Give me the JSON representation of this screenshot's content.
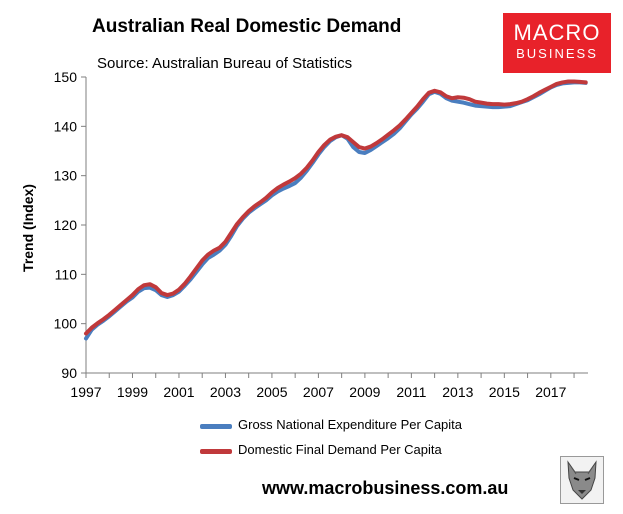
{
  "header": {
    "title": "Australian Real Domestic Demand",
    "subtitle": "Source: Australian Bureau of Statistics"
  },
  "logo": {
    "line1": "MACRO",
    "line2": "BUSINESS",
    "color": "#e8222a",
    "icon": "wolf-icon"
  },
  "footer": {
    "website": "www.macrobusiness.com.au"
  },
  "chart_data": {
    "type": "line",
    "title": "Australian Real Domestic Demand",
    "ylabel": "Trend (Index)",
    "xlabel": "",
    "xlim": [
      1997,
      2018.6
    ],
    "ylim": [
      90,
      150
    ],
    "xticks": [
      "1997",
      "1999",
      "2001",
      "2003",
      "2005",
      "2007",
      "2009",
      "2011",
      "2013",
      "2015",
      "2017"
    ],
    "yticks": [
      "90",
      "100",
      "110",
      "120",
      "130",
      "140",
      "150"
    ],
    "grid": false,
    "legend": "bottom",
    "series": [
      {
        "name": "Gross National Expenditure Per Capita",
        "color": "#4a7ebf",
        "points": [
          [
            1997.0,
            97.0
          ],
          [
            1997.25,
            98.8
          ],
          [
            1997.5,
            99.8
          ],
          [
            1997.75,
            100.6
          ],
          [
            1998.0,
            101.5
          ],
          [
            1998.25,
            102.5
          ],
          [
            1998.5,
            103.5
          ],
          [
            1998.75,
            104.5
          ],
          [
            1999.0,
            105.3
          ],
          [
            1999.25,
            106.5
          ],
          [
            1999.5,
            107.2
          ],
          [
            1999.75,
            107.3
          ],
          [
            2000.0,
            106.8
          ],
          [
            2000.25,
            105.8
          ],
          [
            2000.5,
            105.4
          ],
          [
            2000.75,
            105.8
          ],
          [
            2001.0,
            106.5
          ],
          [
            2001.25,
            107.7
          ],
          [
            2001.5,
            109.0
          ],
          [
            2001.75,
            110.5
          ],
          [
            2002.0,
            112.0
          ],
          [
            2002.25,
            113.3
          ],
          [
            2002.5,
            114.0
          ],
          [
            2002.75,
            114.8
          ],
          [
            2003.0,
            116.0
          ],
          [
            2003.25,
            117.8
          ],
          [
            2003.5,
            119.8
          ],
          [
            2003.75,
            121.3
          ],
          [
            2004.0,
            122.5
          ],
          [
            2004.25,
            123.4
          ],
          [
            2004.5,
            124.2
          ],
          [
            2004.75,
            125.0
          ],
          [
            2005.0,
            126.0
          ],
          [
            2005.25,
            126.8
          ],
          [
            2005.5,
            127.4
          ],
          [
            2005.75,
            127.9
          ],
          [
            2006.0,
            128.5
          ],
          [
            2006.25,
            129.6
          ],
          [
            2006.5,
            131.0
          ],
          [
            2006.75,
            132.6
          ],
          [
            2007.0,
            134.3
          ],
          [
            2007.25,
            135.8
          ],
          [
            2007.5,
            137.0
          ],
          [
            2007.75,
            137.8
          ],
          [
            2008.0,
            138.2
          ],
          [
            2008.25,
            137.5
          ],
          [
            2008.5,
            135.8
          ],
          [
            2008.75,
            134.8
          ],
          [
            2009.0,
            134.6
          ],
          [
            2009.25,
            135.2
          ],
          [
            2009.5,
            136.0
          ],
          [
            2009.75,
            136.8
          ],
          [
            2010.0,
            137.6
          ],
          [
            2010.25,
            138.5
          ],
          [
            2010.5,
            139.6
          ],
          [
            2010.75,
            141.0
          ],
          [
            2011.0,
            142.4
          ],
          [
            2011.25,
            143.6
          ],
          [
            2011.5,
            145.0
          ],
          [
            2011.75,
            146.5
          ],
          [
            2012.0,
            147.0
          ],
          [
            2012.25,
            146.6
          ],
          [
            2012.5,
            145.7
          ],
          [
            2012.75,
            145.2
          ],
          [
            2013.0,
            145.0
          ],
          [
            2013.25,
            144.8
          ],
          [
            2013.5,
            144.5
          ],
          [
            2013.75,
            144.2
          ],
          [
            2014.0,
            144.1
          ],
          [
            2014.25,
            144.0
          ],
          [
            2014.5,
            143.9
          ],
          [
            2014.75,
            143.9
          ],
          [
            2015.0,
            144.0
          ],
          [
            2015.25,
            144.1
          ],
          [
            2015.5,
            144.5
          ],
          [
            2015.75,
            144.9
          ],
          [
            2016.0,
            145.3
          ],
          [
            2016.25,
            145.9
          ],
          [
            2016.5,
            146.5
          ],
          [
            2016.75,
            147.2
          ],
          [
            2017.0,
            147.9
          ],
          [
            2017.25,
            148.4
          ],
          [
            2017.5,
            148.7
          ],
          [
            2017.75,
            148.8
          ],
          [
            2018.0,
            148.9
          ],
          [
            2018.25,
            148.9
          ],
          [
            2018.5,
            148.8
          ]
        ]
      },
      {
        "name": "Domestic Final Demand Per Capita",
        "color": "#c0393b",
        "points": [
          [
            1997.0,
            98.0
          ],
          [
            1997.25,
            99.2
          ],
          [
            1997.5,
            100.1
          ],
          [
            1997.75,
            100.9
          ],
          [
            1998.0,
            101.8
          ],
          [
            1998.25,
            102.8
          ],
          [
            1998.5,
            103.8
          ],
          [
            1998.75,
            104.8
          ],
          [
            1999.0,
            105.8
          ],
          [
            1999.25,
            107.0
          ],
          [
            1999.5,
            107.8
          ],
          [
            1999.75,
            108.0
          ],
          [
            2000.0,
            107.4
          ],
          [
            2000.25,
            106.2
          ],
          [
            2000.5,
            105.8
          ],
          [
            2000.75,
            106.1
          ],
          [
            2001.0,
            106.9
          ],
          [
            2001.25,
            108.1
          ],
          [
            2001.5,
            109.6
          ],
          [
            2001.75,
            111.2
          ],
          [
            2002.0,
            112.8
          ],
          [
            2002.25,
            114.0
          ],
          [
            2002.5,
            114.8
          ],
          [
            2002.75,
            115.4
          ],
          [
            2003.0,
            116.6
          ],
          [
            2003.25,
            118.4
          ],
          [
            2003.5,
            120.2
          ],
          [
            2003.75,
            121.6
          ],
          [
            2004.0,
            122.8
          ],
          [
            2004.25,
            123.8
          ],
          [
            2004.5,
            124.6
          ],
          [
            2004.75,
            125.5
          ],
          [
            2005.0,
            126.6
          ],
          [
            2005.25,
            127.5
          ],
          [
            2005.5,
            128.2
          ],
          [
            2005.75,
            128.8
          ],
          [
            2006.0,
            129.5
          ],
          [
            2006.25,
            130.4
          ],
          [
            2006.5,
            131.6
          ],
          [
            2006.75,
            133.1
          ],
          [
            2007.0,
            134.8
          ],
          [
            2007.25,
            136.2
          ],
          [
            2007.5,
            137.3
          ],
          [
            2007.75,
            137.9
          ],
          [
            2008.0,
            138.2
          ],
          [
            2008.25,
            137.8
          ],
          [
            2008.5,
            136.8
          ],
          [
            2008.75,
            135.8
          ],
          [
            2009.0,
            135.5
          ],
          [
            2009.25,
            135.9
          ],
          [
            2009.5,
            136.6
          ],
          [
            2009.75,
            137.4
          ],
          [
            2010.0,
            138.3
          ],
          [
            2010.25,
            139.2
          ],
          [
            2010.5,
            140.2
          ],
          [
            2010.75,
            141.4
          ],
          [
            2011.0,
            142.7
          ],
          [
            2011.25,
            144.0
          ],
          [
            2011.5,
            145.5
          ],
          [
            2011.75,
            146.8
          ],
          [
            2012.0,
            147.2
          ],
          [
            2012.25,
            146.9
          ],
          [
            2012.5,
            146.1
          ],
          [
            2012.75,
            145.7
          ],
          [
            2013.0,
            145.9
          ],
          [
            2013.25,
            145.8
          ],
          [
            2013.5,
            145.5
          ],
          [
            2013.75,
            145.0
          ],
          [
            2014.0,
            144.8
          ],
          [
            2014.25,
            144.6
          ],
          [
            2014.5,
            144.5
          ],
          [
            2014.75,
            144.5
          ],
          [
            2015.0,
            144.4
          ],
          [
            2015.25,
            144.5
          ],
          [
            2015.5,
            144.7
          ],
          [
            2015.75,
            145.0
          ],
          [
            2016.0,
            145.5
          ],
          [
            2016.25,
            146.1
          ],
          [
            2016.5,
            146.8
          ],
          [
            2016.75,
            147.4
          ],
          [
            2017.0,
            148.0
          ],
          [
            2017.25,
            148.6
          ],
          [
            2017.5,
            148.9
          ],
          [
            2017.75,
            149.1
          ],
          [
            2018.0,
            149.1
          ],
          [
            2018.25,
            149.0
          ],
          [
            2018.5,
            148.9
          ]
        ]
      }
    ]
  }
}
